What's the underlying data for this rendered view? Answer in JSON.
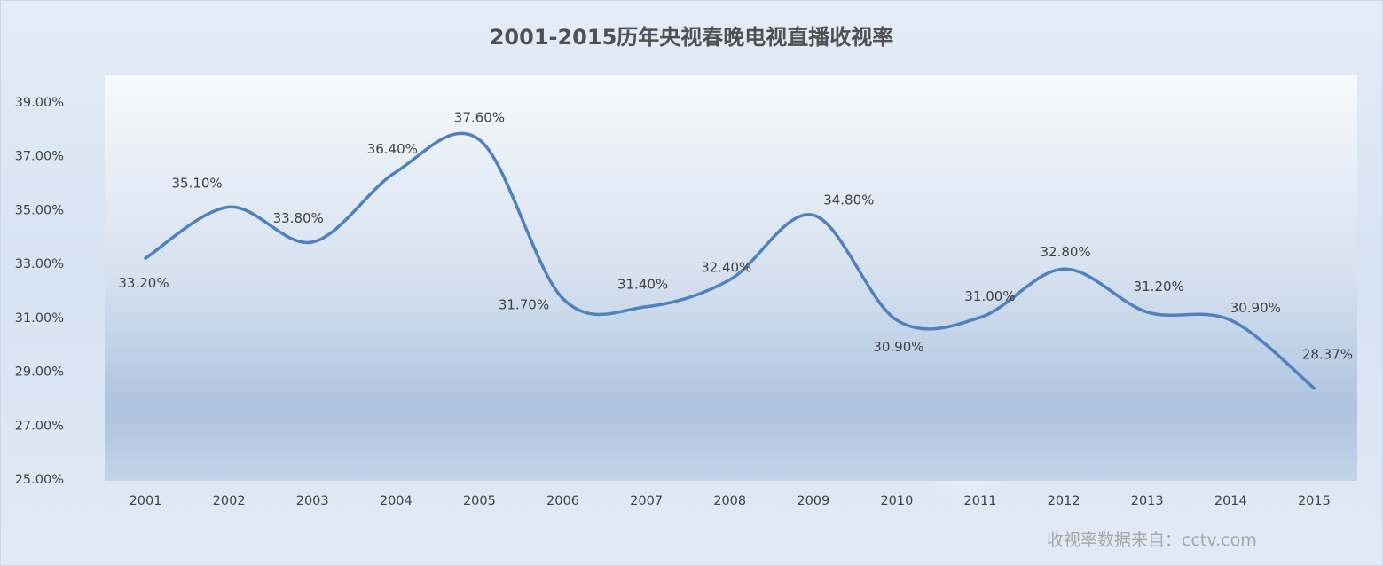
{
  "chart_data": {
    "type": "line",
    "title": "2001-2015历年央视春晚电视直播收视率",
    "xlabel": "",
    "ylabel": "",
    "x": [
      "2001",
      "2002",
      "2003",
      "2004",
      "2005",
      "2006",
      "2007",
      "2008",
      "2009",
      "2010",
      "2011",
      "2012",
      "2013",
      "2014",
      "2015"
    ],
    "series": [
      {
        "values": [
          33.2,
          35.1,
          33.8,
          36.4,
          37.6,
          31.7,
          31.4,
          32.4,
          34.8,
          30.9,
          31.0,
          32.8,
          31.2,
          30.9,
          28.37
        ]
      }
    ],
    "data_labels": [
      "33.20%",
      "35.10%",
      "33.80%",
      "36.40%",
      "37.60%",
      "31.70%",
      "31.40%",
      "32.40%",
      "34.80%",
      "30.90%",
      "31.00%",
      "32.80%",
      "31.20%",
      "30.90%",
      "28.37%"
    ],
    "y_tick_labels": [
      "25.00%",
      "27.00%",
      "29.00%",
      "31.00%",
      "33.00%",
      "35.00%",
      "37.00%",
      "39.00%"
    ],
    "ylim": [
      25,
      40
    ],
    "grid": false,
    "legend": "none",
    "smooth": true,
    "line_color": "#4f81bd"
  },
  "source_note": "收视率数据来自：cctv.com"
}
